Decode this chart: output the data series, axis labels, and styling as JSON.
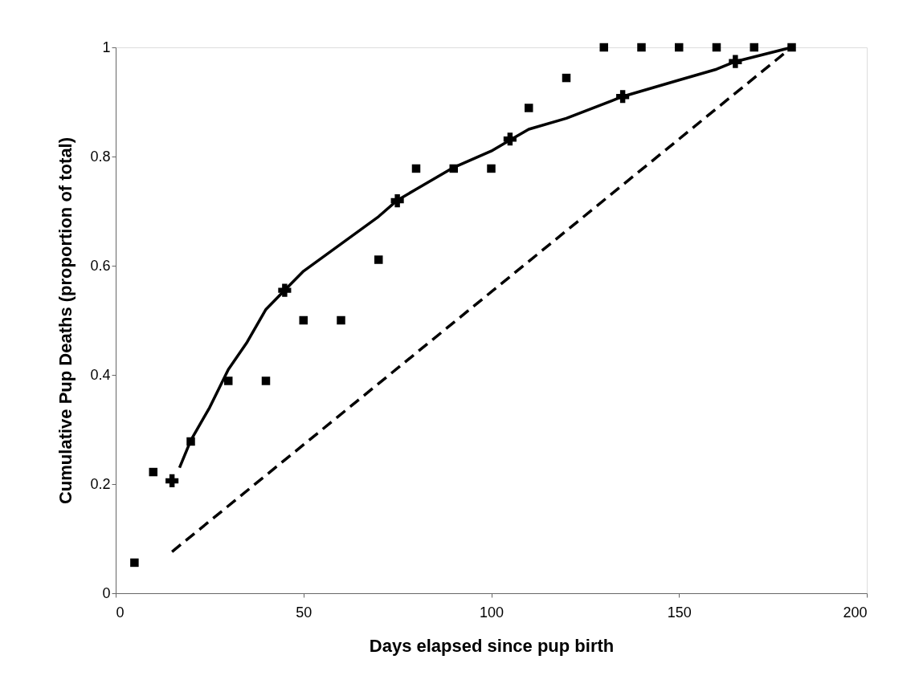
{
  "chart_data": {
    "type": "scatter",
    "xlabel": "Days elapsed since pup birth",
    "ylabel": "Cumulative Pup Deaths (proportion of total)",
    "xlim": [
      0,
      200
    ],
    "xticks": [
      0,
      50,
      100,
      150,
      200
    ],
    "ylim": [
      0,
      1
    ],
    "yticks": [
      0,
      0.2,
      0.4,
      0.6,
      0.8,
      1
    ],
    "grid": false,
    "series": [
      {
        "marker": "square",
        "color": "#000000",
        "x": [
          5,
          10,
          20,
          30,
          40,
          50,
          60,
          70,
          80,
          90,
          100,
          110,
          120,
          130,
          140,
          150,
          160,
          170,
          180
        ],
        "values": [
          0.056,
          0.222,
          0.278,
          0.389,
          0.389,
          0.5,
          0.5,
          0.611,
          0.778,
          0.778,
          0.778,
          0.889,
          0.944,
          1,
          1,
          1,
          1,
          1,
          1
        ]
      },
      {
        "type": "line",
        "line_style": "solid",
        "marker": "none",
        "color": "#000000",
        "x": [
          17,
          20,
          25,
          30,
          35,
          40,
          45,
          50,
          60,
          70,
          75,
          80,
          90,
          100,
          105,
          110,
          120,
          135,
          150,
          160,
          165,
          180
        ],
        "values": [
          0.23,
          0.28,
          0.34,
          0.41,
          0.46,
          0.52,
          0.555,
          0.59,
          0.64,
          0.69,
          0.72,
          0.74,
          0.78,
          0.81,
          0.83,
          0.85,
          0.87,
          0.91,
          0.94,
          0.96,
          0.974,
          1
        ]
      },
      {
        "marker": "cross",
        "color": "#000000",
        "x": [
          15,
          45,
          75,
          105,
          135,
          165
        ],
        "values": [
          0.206,
          0.555,
          0.719,
          0.832,
          0.91,
          0.974
        ]
      },
      {
        "type": "line",
        "line_style": "dashed",
        "marker": "none",
        "color": "#000000",
        "x": [
          15,
          180
        ],
        "values": [
          0.076,
          1
        ]
      }
    ]
  }
}
